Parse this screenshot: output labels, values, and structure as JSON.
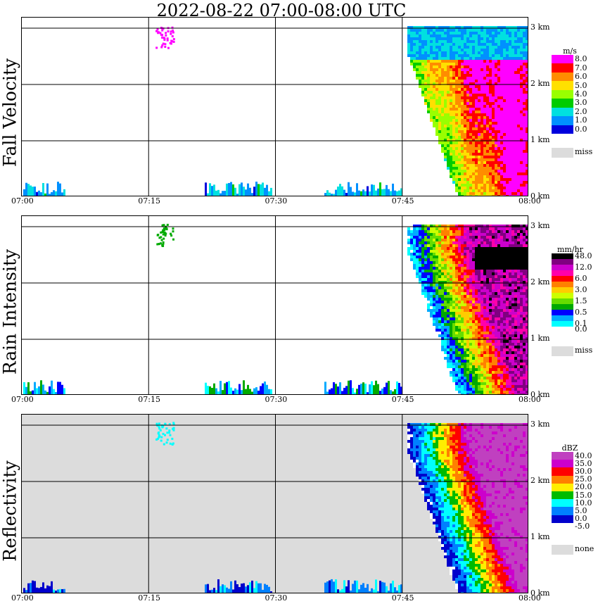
{
  "title": "2022-08-22   07:00-08:00 UTC",
  "time_ticks": [
    "07:00",
    "07:15",
    "07:30",
    "07:45",
    "08:00"
  ],
  "height_ticks": [
    "3 km",
    "2 km",
    "1 km",
    "0 km"
  ],
  "panels": [
    {
      "label": "Fall Velocity",
      "legend_title": "m/s",
      "legend": [
        {
          "label": "8.0",
          "color": "#ff00ff"
        },
        {
          "label": "7.0",
          "color": "#ff0000"
        },
        {
          "label": "6.0",
          "color": "#ff8c00"
        },
        {
          "label": "5.0",
          "color": "#ffe000"
        },
        {
          "label": "4.0",
          "color": "#99ff00"
        },
        {
          "label": "3.0",
          "color": "#00cc00"
        },
        {
          "label": "2.0",
          "color": "#00e0e0"
        },
        {
          "label": "1.0",
          "color": "#0090ff"
        },
        {
          "label": "0.0",
          "color": "#0000dd"
        }
      ],
      "missing_label": "miss",
      "background": "#ffffff"
    },
    {
      "label": "Rain Intensity",
      "legend_title": "mm/hr",
      "legend": [
        {
          "label": "48.0",
          "color": "#000000"
        },
        {
          "label": "",
          "color": "#800080"
        },
        {
          "label": "12.0",
          "color": "#cc00cc"
        },
        {
          "label": "",
          "color": "#ff00aa"
        },
        {
          "label": "6.0",
          "color": "#ff0000"
        },
        {
          "label": "",
          "color": "#ff8000"
        },
        {
          "label": "3.0",
          "color": "#ffcc00"
        },
        {
          "label": "",
          "color": "#ccff00"
        },
        {
          "label": "1.5",
          "color": "#66dd00"
        },
        {
          "label": "",
          "color": "#00aa00"
        },
        {
          "label": "0.5",
          "color": "#0000ff"
        },
        {
          "label": "",
          "color": "#00aaff"
        },
        {
          "label": "0.1",
          "color": "#00ffff"
        },
        {
          "label": "0.0",
          "color": "#ffffff"
        }
      ],
      "missing_label": "miss",
      "background": "#ffffff"
    },
    {
      "label": "Reflectivity",
      "legend_title": "dBZ",
      "legend": [
        {
          "label": "40.0",
          "color": "#c040c0"
        },
        {
          "label": "35.0",
          "color": "#cc00cc"
        },
        {
          "label": "30.0",
          "color": "#ff0000"
        },
        {
          "label": "25.0",
          "color": "#ff8000"
        },
        {
          "label": "20.0",
          "color": "#ffee00"
        },
        {
          "label": "15.0",
          "color": "#00bb00"
        },
        {
          "label": "10.0",
          "color": "#00ffff"
        },
        {
          "label": "5.0",
          "color": "#0080ff"
        },
        {
          "label": "0.0",
          "color": "#0000cc"
        },
        {
          "label": "-5.0",
          "color": "#ffffff"
        }
      ],
      "missing_label": "none",
      "background": "#dcdcdc"
    }
  ],
  "chart_data": [
    {
      "type": "heatmap",
      "title": "2022-08-22   07:00-08:00 UTC",
      "ylabel": "Fall Velocity",
      "xlabel": "",
      "xlim": [
        "07:00",
        "08:00"
      ],
      "ylim_km": [
        0,
        3.2
      ],
      "grid": true,
      "units": "m/s",
      "scale": [
        0.0,
        1.0,
        2.0,
        3.0,
        4.0,
        5.0,
        6.0,
        7.0,
        8.0
      ]
    },
    {
      "type": "heatmap",
      "ylabel": "Rain Intensity",
      "xlabel": "",
      "xlim": [
        "07:00",
        "08:00"
      ],
      "ylim_km": [
        0,
        3.2
      ],
      "grid": true,
      "units": "mm/hr",
      "scale": [
        0.0,
        0.1,
        0.5,
        1.5,
        3.0,
        6.0,
        12.0,
        48.0
      ]
    },
    {
      "type": "heatmap",
      "ylabel": "Reflectivity",
      "xlabel": "",
      "xlim": [
        "07:00",
        "08:00"
      ],
      "ylim_km": [
        0,
        3.2
      ],
      "grid": true,
      "units": "dBZ",
      "scale": [
        -5.0,
        0.0,
        5.0,
        10.0,
        15.0,
        20.0,
        25.0,
        30.0,
        35.0,
        40.0
      ]
    }
  ]
}
